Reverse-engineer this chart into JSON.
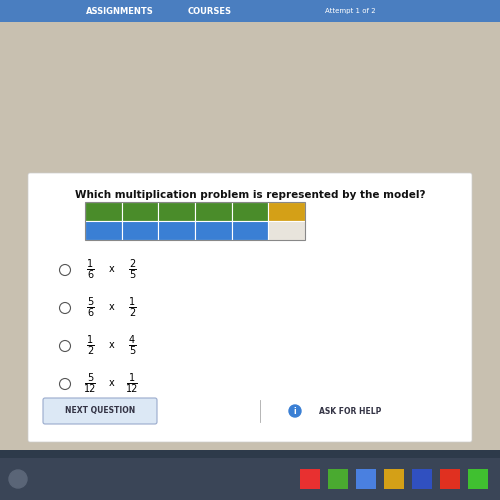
{
  "title": "Which multiplication problem is represented by the model?",
  "title_fontsize": 7.5,
  "bg_outer": "#2d3a4a",
  "bg_screen": "#c8c0b0",
  "bg_content": "#e8e4dc",
  "header_bg": "#4a7ec0",
  "header_text1": "ASSIGNMENTS",
  "header_text2": "COURSES",
  "header_text3": "Attempt 1 of 2",
  "n_cols": 6,
  "n_rows": 2,
  "top_row_colors": [
    "#4a8c2a",
    "#4a8c2a",
    "#4a8c2a",
    "#4a8c2a",
    "#4a8c2a",
    "#d4a017"
  ],
  "bottom_row_colors": [
    "#3a7fd4",
    "#3a7fd4",
    "#3a7fd4",
    "#3a7fd4",
    "#3a7fd4",
    "#e8e4dc"
  ],
  "options": [
    {
      "n1": "1",
      "d1": "6",
      "n2": "2",
      "d2": "5"
    },
    {
      "n1": "5",
      "d1": "6",
      "n2": "1",
      "d2": "2"
    },
    {
      "n1": "1",
      "d1": "2",
      "n2": "4",
      "d2": "5"
    },
    {
      "n1": "5",
      "d1": "12",
      "n2": "1",
      "d2": "12"
    }
  ],
  "nav_btn_text": "NEXT QUESTION",
  "help_text": "ASK FOR HELP",
  "taskbar_bg": "#3a4557",
  "taskbar_icons": [
    "#e8302a",
    "#4a8c2a",
    "#4a7ec0",
    "#d4a017",
    "#c83020",
    "#e84020",
    "#4ac020"
  ]
}
